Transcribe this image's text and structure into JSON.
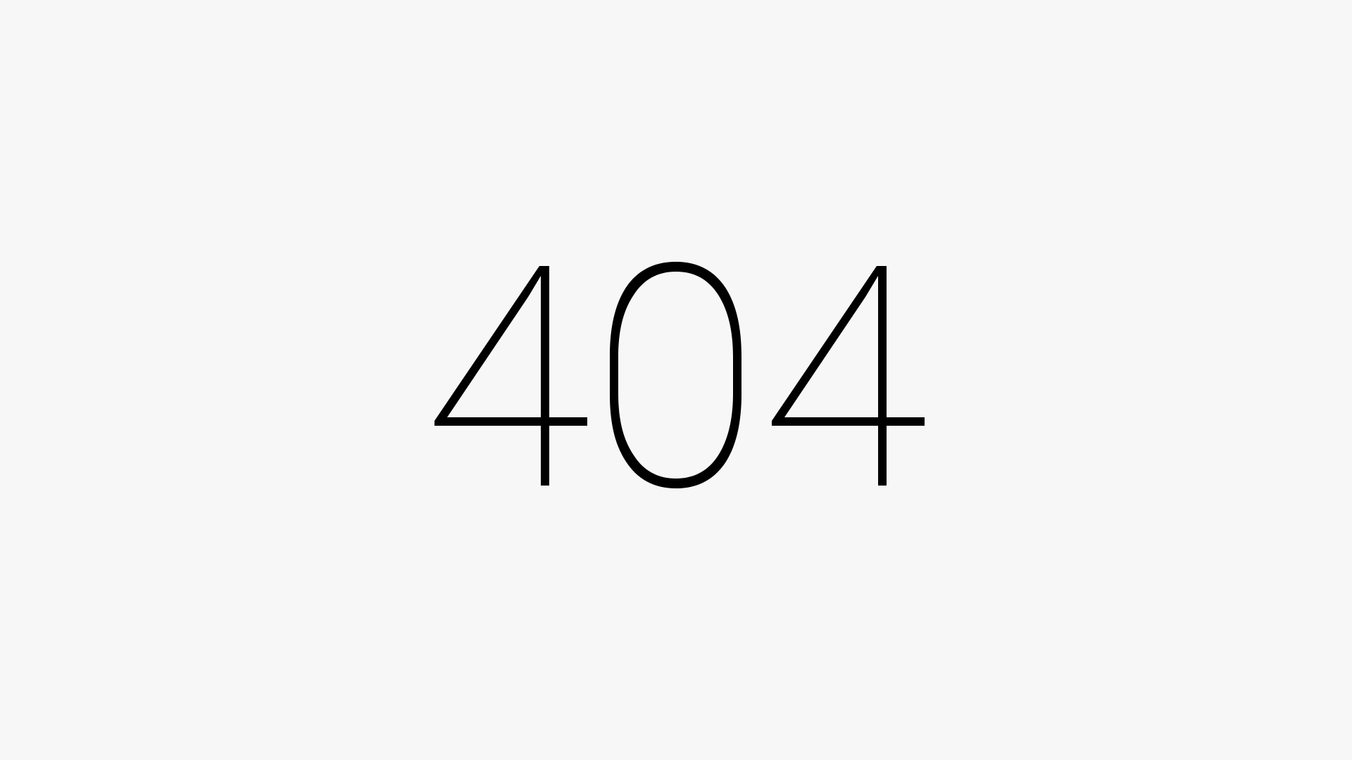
{
  "error": {
    "code": "404",
    "digits": [
      "4",
      "0",
      "4"
    ]
  },
  "colors": {
    "background": "#f7f7f7",
    "text": "#000000"
  }
}
